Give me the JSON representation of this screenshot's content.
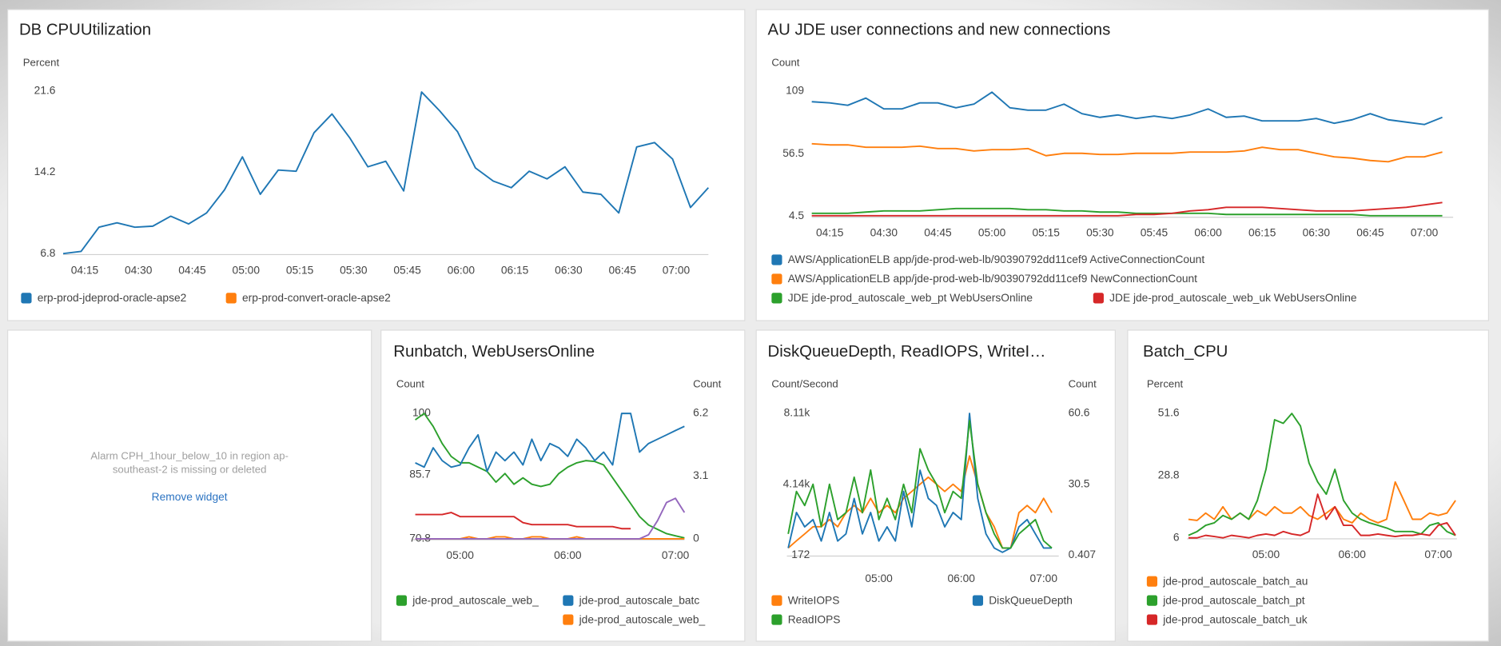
{
  "chart_data": [
    {
      "type": "line",
      "title": "DB CPUUtilization",
      "ylabel": "Percent",
      "x": [
        "04:09",
        "04:14",
        "04:19",
        "04:24",
        "04:29",
        "04:34",
        "04:39",
        "04:44",
        "04:49",
        "04:54",
        "04:59",
        "05:04",
        "05:09",
        "05:14",
        "05:19",
        "05:24",
        "05:29",
        "05:34",
        "05:39",
        "05:44",
        "05:49",
        "05:54",
        "05:59",
        "06:04",
        "06:09",
        "06:14",
        "06:19",
        "06:24",
        "06:29",
        "06:34",
        "06:39",
        "06:44",
        "06:49",
        "06:54",
        "06:59",
        "07:04",
        "07:09"
      ],
      "xlim": [
        "04:09",
        "07:09"
      ],
      "xticks": [
        "04:15",
        "04:30",
        "04:45",
        "05:00",
        "05:15",
        "05:30",
        "05:45",
        "06:00",
        "06:15",
        "06:30",
        "06:45",
        "07:00"
      ],
      "ylim": [
        6.8,
        21.6
      ],
      "yticks": [
        6.8,
        14.2,
        21.6
      ],
      "series": [
        {
          "name": "erp-prod-jdeprod-oracle-apse2",
          "color": "#1f77b4",
          "values": [
            6.8,
            7.0,
            9.2,
            9.6,
            9.2,
            9.3,
            10.2,
            9.5,
            10.5,
            12.6,
            15.6,
            12.2,
            14.4,
            14.3,
            17.8,
            19.5,
            17.3,
            14.7,
            15.2,
            12.5,
            21.5,
            19.8,
            17.9,
            14.6,
            13.4,
            12.8,
            14.3,
            13.6,
            14.7,
            12.4,
            12.2,
            10.5,
            16.5,
            16.9,
            15.4,
            11.0,
            12.8
          ]
        },
        {
          "name": "erp-prod-convert-oracle-apse2",
          "color": "#ff7f0e",
          "values": [
            null,
            null,
            null,
            null,
            null,
            null,
            null,
            null,
            null,
            null,
            null,
            null,
            null,
            null,
            null,
            null,
            null,
            null,
            null,
            null,
            null,
            null,
            null,
            null,
            null,
            null,
            null,
            null,
            null,
            null,
            null,
            null,
            null,
            null,
            null,
            null,
            null
          ]
        }
      ]
    },
    {
      "type": "line",
      "title": "AU JDE user connections and new connections",
      "ylabel": "Count",
      "x": [
        "04:10",
        "04:15",
        "04:20",
        "04:25",
        "04:30",
        "04:35",
        "04:40",
        "04:45",
        "04:50",
        "04:55",
        "05:00",
        "05:05",
        "05:10",
        "05:15",
        "05:20",
        "05:25",
        "05:30",
        "05:35",
        "05:40",
        "05:45",
        "05:50",
        "05:55",
        "06:00",
        "06:05",
        "06:10",
        "06:15",
        "06:20",
        "06:25",
        "06:30",
        "06:35",
        "06:40",
        "06:45",
        "06:50",
        "06:55",
        "07:00",
        "07:05"
      ],
      "xlim": [
        "04:10",
        "07:08"
      ],
      "xticks": [
        "04:15",
        "04:30",
        "04:45",
        "05:00",
        "05:15",
        "05:30",
        "05:45",
        "06:00",
        "06:15",
        "06:30",
        "06:45",
        "07:00"
      ],
      "ylim": [
        4.5,
        109
      ],
      "yticks": [
        4.5,
        56.5,
        109
      ],
      "series": [
        {
          "name": "AWS/ApplicationELB app/jde-prod-web-lb/90390792dd11cef9 ActiveConnectionCount",
          "color": "#1f77b4",
          "values": [
            100,
            99,
            97,
            103,
            94,
            94,
            99,
            99,
            95,
            98,
            108,
            95,
            93,
            93,
            98,
            90,
            87,
            89,
            86,
            88,
            86,
            89,
            94,
            87,
            88,
            84,
            84,
            84,
            86,
            82,
            85,
            90,
            85,
            83,
            81,
            87
          ]
        },
        {
          "name": "AWS/ApplicationELB app/jde-prod-web-lb/90390792dd11cef9 NewConnectionCount",
          "color": "#ff7f0e",
          "values": [
            65,
            64,
            64,
            62,
            62,
            62,
            63,
            61,
            61,
            59,
            60,
            60,
            61,
            55,
            57,
            57,
            56,
            56,
            57,
            57,
            57,
            58,
            58,
            58,
            59,
            62,
            60,
            60,
            57,
            54,
            53,
            51,
            50,
            54,
            54,
            58
          ]
        },
        {
          "name": "JDE jde-prod_autoscale_web_pt WebUsersOnline",
          "color": "#2ca02c",
          "values": [
            7,
            7,
            7,
            8,
            9,
            9,
            9,
            10,
            11,
            11,
            11,
            11,
            10,
            10,
            9,
            9,
            8,
            8,
            7,
            7,
            7,
            7,
            7,
            6,
            6,
            6,
            6,
            6,
            6,
            6,
            6,
            5,
            5,
            5,
            5,
            5
          ]
        },
        {
          "name": "JDE jde-prod_autoscale_web_uk WebUsersOnline",
          "color": "#d62728",
          "values": [
            5,
            5,
            5,
            5,
            5,
            5,
            5,
            5,
            5,
            5,
            5,
            5,
            5,
            5,
            5,
            5,
            5,
            5,
            6,
            6,
            7,
            9,
            10,
            12,
            12,
            12,
            11,
            10,
            9,
            9,
            9,
            10,
            11,
            12,
            14,
            16
          ]
        }
      ]
    },
    {
      "type": "line",
      "title": "Runbatch, WebUsersOnline",
      "ylabel": "Count",
      "y2label": "Count",
      "x": [
        "04:35",
        "04:40",
        "04:45",
        "04:50",
        "04:55",
        "05:00",
        "05:05",
        "05:10",
        "05:15",
        "05:20",
        "05:25",
        "05:30",
        "05:35",
        "05:40",
        "05:45",
        "05:50",
        "05:55",
        "06:00",
        "06:05",
        "06:10",
        "06:15",
        "06:20",
        "06:25",
        "06:30",
        "06:35",
        "06:40",
        "06:45",
        "06:50",
        "06:55",
        "07:00",
        "07:05"
      ],
      "xlim": [
        "04:33",
        "07:05"
      ],
      "xticks": [
        "05:00",
        "06:00",
        "07:00"
      ],
      "ylim": [
        70.8,
        100
      ],
      "yticks": [
        70.8,
        85.7,
        100
      ],
      "y2lim": [
        0,
        6.2
      ],
      "y2ticks": [
        0,
        3.1,
        6.2
      ],
      "series": [
        {
          "name": "jde-prod_autoscale_web_",
          "color": "#2ca02c",
          "values": [
            98.5,
            100,
            97,
            93,
            90,
            88.5,
            88.5,
            87.5,
            86.5,
            84,
            86,
            83.5,
            85,
            83.5,
            83,
            83.5,
            86,
            87.5,
            88.5,
            89,
            88.8,
            88,
            85,
            82,
            79,
            76,
            74,
            73,
            72,
            71.5,
            71
          ]
        },
        {
          "name": "jde-prod_autoscale_batc",
          "color": "#1f77b4",
          "values": [
            88.5,
            87.5,
            92,
            89,
            87.5,
            88,
            92,
            95,
            86.5,
            91,
            89,
            91,
            88,
            94,
            89,
            93,
            92,
            90,
            94,
            92,
            89,
            91,
            88,
            100,
            100,
            91,
            93,
            94,
            95,
            96,
            97
          ]
        },
        {
          "name": "jde-prod_autoscale_web_",
          "color": "#ff7f0e",
          "axis": "y2",
          "values": [
            0,
            0,
            0,
            0,
            0,
            0,
            0.1,
            0,
            0,
            0.1,
            0.1,
            0,
            0,
            0.1,
            0.1,
            0,
            0,
            0,
            0.1,
            0,
            0,
            0,
            0,
            0,
            0,
            0,
            0,
            0,
            0,
            0,
            0
          ]
        },
        {
          "color": "#d62728",
          "axis": "y2",
          "values": [
            1.2,
            1.2,
            1.2,
            1.2,
            1.3,
            1.1,
            1.1,
            1.1,
            1.1,
            1.1,
            1.1,
            1.1,
            0.8,
            0.7,
            0.7,
            0.7,
            0.7,
            0.7,
            0.6,
            0.6,
            0.6,
            0.6,
            0.6,
            0.5,
            0.5,
            null,
            null,
            null,
            null,
            null,
            null
          ]
        },
        {
          "color": "#9467bd",
          "axis": "y2",
          "values": [
            0,
            0,
            0,
            0,
            0,
            0,
            0,
            0,
            0,
            0,
            0,
            0,
            0,
            0,
            0,
            0,
            0,
            0,
            0,
            0,
            0,
            0,
            0,
            0,
            0,
            0,
            0.2,
            0.9,
            1.8,
            2.0,
            1.3
          ]
        }
      ]
    },
    {
      "type": "line",
      "title": "DiskQueueDepth, ReadIOPS, WriteI…",
      "ylabel": "Count/Second",
      "y2label": "Count",
      "x": [
        "03:54",
        "04:00",
        "04:06",
        "04:12",
        "04:18",
        "04:24",
        "04:30",
        "04:36",
        "04:42",
        "04:48",
        "04:54",
        "05:00",
        "05:06",
        "05:12",
        "05:18",
        "05:24",
        "05:30",
        "05:36",
        "05:42",
        "05:48",
        "05:54",
        "06:00",
        "06:06",
        "06:12",
        "06:18",
        "06:24",
        "06:30",
        "06:36",
        "06:42",
        "06:48",
        "06:54",
        "07:00",
        "07:06"
      ],
      "xlim": [
        "03:53",
        "07:11"
      ],
      "xticks": [
        "05:00",
        "06:00",
        "07:00"
      ],
      "ylim": [
        172,
        8110
      ],
      "yticks": [
        172,
        {
          "value": 4140,
          "label": "4.14k"
        },
        {
          "value": 8110,
          "label": "8.11k"
        }
      ],
      "y2lim": [
        0.407,
        60.6
      ],
      "y2ticks": [
        0.407,
        30.5,
        60.6
      ],
      "series": [
        {
          "name": "WriteIOPS",
          "color": "#ff7f0e",
          "values": [
            570,
            970,
            1360,
            1760,
            1760,
            2160,
            1760,
            2550,
            2950,
            2550,
            3350,
            2550,
            2950,
            2550,
            3350,
            3740,
            4140,
            4540,
            4140,
            3740,
            4140,
            3740,
            5730,
            4140,
            2550,
            1760,
            570,
            570,
            2550,
            2950,
            2550,
            3350,
            2550
          ]
        },
        {
          "name": "DiskQueueDepth",
          "color": "#1f77b4",
          "axis": "y2",
          "values": [
            3.4,
            18.5,
            12.4,
            15.5,
            6.4,
            18.5,
            6.4,
            9.4,
            24.5,
            9.4,
            18.5,
            6.4,
            12.4,
            6.4,
            27.5,
            12.4,
            36.5,
            24.5,
            21.5,
            12.4,
            18.5,
            15.5,
            60.6,
            24.5,
            9.4,
            3.4,
            1.6,
            3.4,
            12.4,
            15.5,
            9.4,
            3.4,
            3.4
          ]
        },
        {
          "name": "ReadIOPS",
          "color": "#2ca02c",
          "values": [
            1360,
            3740,
            2950,
            4140,
            1760,
            4140,
            2160,
            2550,
            4540,
            2550,
            4940,
            2160,
            3350,
            2160,
            4140,
            2550,
            6130,
            4940,
            4140,
            2550,
            3740,
            3350,
            7710,
            4140,
            2550,
            1360,
            570,
            570,
            1360,
            1760,
            2160,
            970,
            570
          ]
        }
      ]
    },
    {
      "type": "line",
      "title": "Batch_CPU",
      "ylabel": "Percent",
      "x": [
        "04:06",
        "04:12",
        "04:18",
        "04:24",
        "04:30",
        "04:36",
        "04:42",
        "04:48",
        "04:54",
        "05:00",
        "05:06",
        "05:12",
        "05:18",
        "05:24",
        "05:30",
        "05:36",
        "05:42",
        "05:48",
        "05:54",
        "06:00",
        "06:06",
        "06:12",
        "06:18",
        "06:24",
        "06:30",
        "06:36",
        "06:42",
        "06:48",
        "06:54",
        "07:00",
        "07:06",
        "07:12"
      ],
      "xlim": [
        "04:05",
        "07:13"
      ],
      "xticks": [
        "05:00",
        "06:00",
        "07:00"
      ],
      "ylim": [
        6,
        51.6
      ],
      "yticks": [
        6,
        28.8,
        51.6
      ],
      "series": [
        {
          "name": "jde-prod_autoscale_batch_au",
          "color": "#ff7f0e",
          "values": [
            12.8,
            12.4,
            15.1,
            12.8,
            17.4,
            12.8,
            15.1,
            12.8,
            16,
            14.2,
            17.4,
            15.1,
            15.1,
            17.4,
            14.2,
            12.8,
            15.1,
            17.4,
            12.8,
            11.5,
            15.1,
            12.8,
            11.5,
            12.8,
            26.5,
            19.7,
            12.8,
            12.8,
            15.1,
            14.2,
            15.1,
            19.7
          ]
        },
        {
          "name": "jde-prod_autoscale_batch_pt",
          "color": "#2ca02c",
          "values": [
            6.9,
            8.3,
            10.6,
            11.5,
            14.2,
            12.8,
            15.1,
            12.8,
            19.7,
            31.1,
            49.3,
            48,
            51.6,
            47,
            33.4,
            26.5,
            22,
            31.1,
            19.7,
            15.1,
            12.8,
            11.5,
            10.6,
            9.6,
            8.3,
            8.3,
            8.3,
            7.4,
            10.6,
            11.5,
            8.3,
            6.9
          ]
        },
        {
          "name": "jde-prod_autoscale_batch_uk",
          "color": "#d62728",
          "values": [
            6,
            6,
            6.9,
            6.5,
            6,
            6.9,
            6.5,
            6,
            6.9,
            7.4,
            6.9,
            8.3,
            7.4,
            6.9,
            8.3,
            22,
            12.8,
            17.4,
            10.6,
            10.6,
            6.9,
            6.9,
            7.4,
            6.9,
            6.5,
            6.9,
            6.9,
            7.4,
            6.9,
            10.6,
            11.5,
            6.9
          ]
        }
      ]
    }
  ],
  "alarm_widget": {
    "message": "Alarm CPH_1hour_below_10 in region ap-southeast-2 is missing or deleted",
    "action": "Remove widget"
  }
}
